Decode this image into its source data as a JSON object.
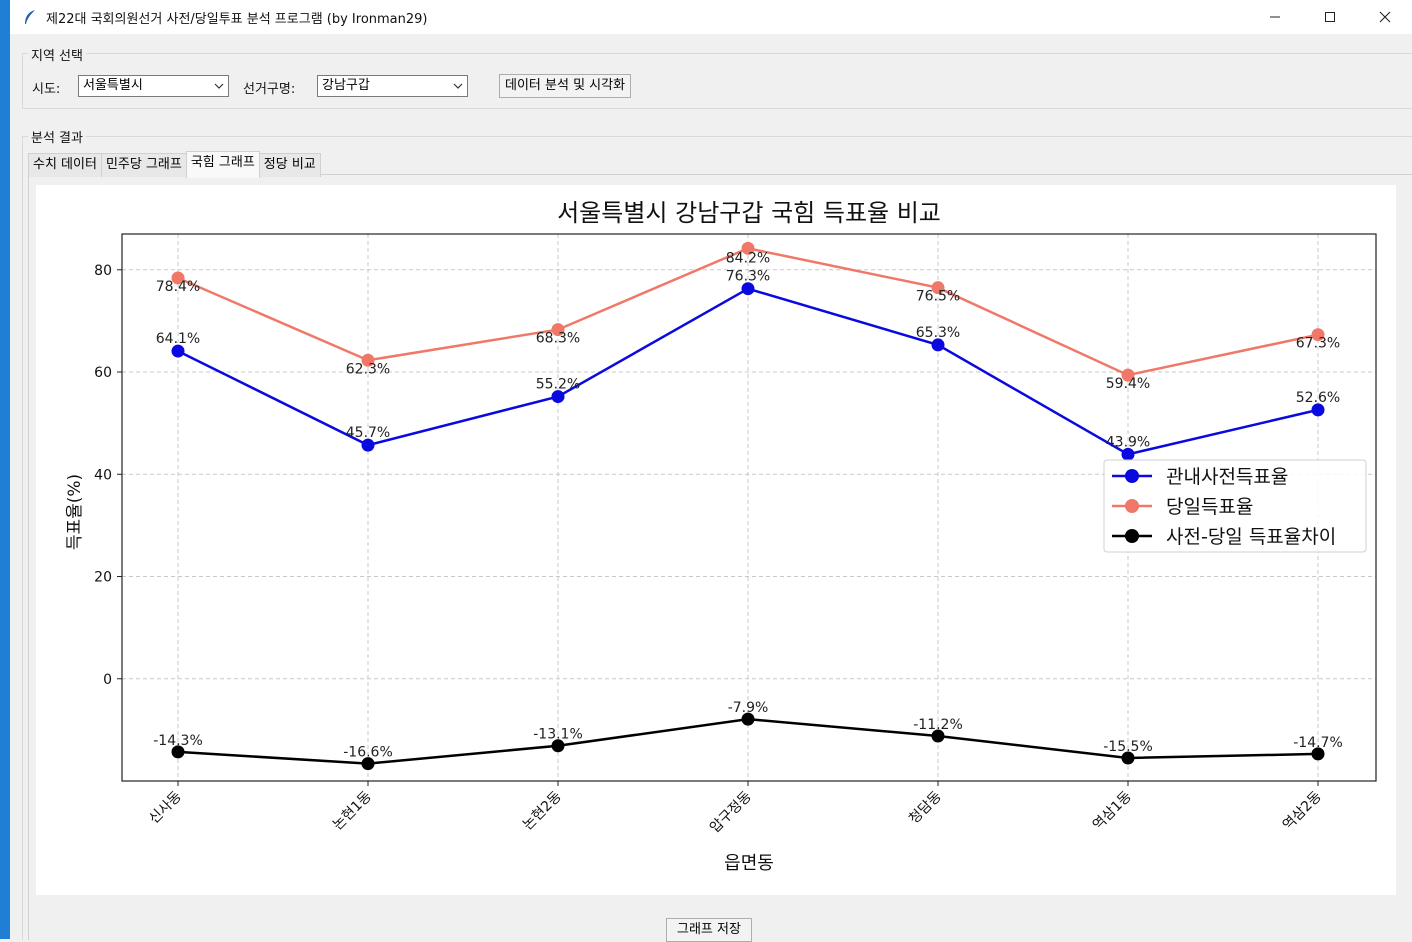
{
  "window": {
    "title": "제22대 국회의원선거 사전/당일투표 분석 프로그램 (by Ironman29)"
  },
  "region_frame": {
    "label": "지역 선택",
    "sido_label": "시도:",
    "sido_value": "서울특별시",
    "district_label": "선거구명:",
    "district_value": "강남구갑",
    "analyze_button": "데이터 분석 및 시각화"
  },
  "result_frame": {
    "label": "분석 결과",
    "tabs": [
      {
        "label": "수치 데이터",
        "active": false
      },
      {
        "label": "민주당 그래프",
        "active": false
      },
      {
        "label": "국힘 그래프",
        "active": true
      },
      {
        "label": "정당 비교",
        "active": false
      }
    ]
  },
  "save_button": "그래프 저장",
  "colors": {
    "series_early": "#0a0ae0",
    "series_day": "#f07868",
    "series_diff": "#000000"
  },
  "chart_data": {
    "type": "line",
    "title": "서울특별시 강남구갑 국힘 득표율 비교",
    "xlabel": "읍면동",
    "ylabel": "득표율(%)",
    "ylim": [
      -20,
      87
    ],
    "yticks": [
      0,
      20,
      40,
      60,
      80
    ],
    "grid": true,
    "legend_position": "center-right",
    "categories": [
      "신사동",
      "논현1동",
      "논현2동",
      "압구정동",
      "청담동",
      "역삼1동",
      "역삼2동"
    ],
    "series": [
      {
        "name": "관내사전득표율",
        "color": "#0a0ae0",
        "values": [
          64.1,
          45.7,
          55.2,
          76.3,
          65.3,
          43.9,
          52.6
        ],
        "labels": [
          "64.1%",
          "45.7%",
          "55.2%",
          "76.3%",
          "65.3%",
          "43.9%",
          "52.6%"
        ]
      },
      {
        "name": "당일득표율",
        "color": "#f07868",
        "values": [
          78.4,
          62.3,
          68.3,
          84.2,
          76.5,
          59.4,
          67.3
        ],
        "labels": [
          "78.4%",
          "62.3%",
          "68.3%",
          "84.2%",
          "76.5%",
          "59.4%",
          "67.3%"
        ]
      },
      {
        "name": "사전-당일 득표율차이",
        "color": "#000000",
        "values": [
          -14.3,
          -16.6,
          -13.1,
          -7.9,
          -11.2,
          -15.5,
          -14.7
        ],
        "labels": [
          "-14.3%",
          "-16.6%",
          "-13.1%",
          "-7.9%",
          "-11.2%",
          "-15.5%",
          "-14.7%"
        ]
      }
    ]
  }
}
